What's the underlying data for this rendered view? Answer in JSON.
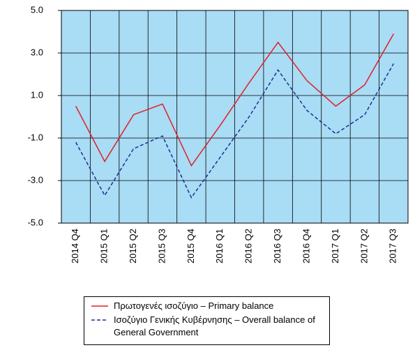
{
  "chart_data": {
    "type": "line",
    "categories": [
      "2014 Q4",
      "2015 Q1",
      "2015 Q2",
      "2015 Q3",
      "2015 Q4",
      "2016 Q1",
      "2016 Q2",
      "2016 Q3",
      "2016 Q4",
      "2017 Q1",
      "2017 Q2",
      "2017 Q3"
    ],
    "series": [
      {
        "name": "Πρωτογενές ισοζύγιο – Primary balance",
        "color": "#e31e24",
        "dash": false,
        "values": [
          0.5,
          -2.1,
          0.1,
          0.6,
          -2.3,
          -0.4,
          1.6,
          3.5,
          1.7,
          0.5,
          1.5,
          3.9
        ]
      },
      {
        "name": "Ισοζύγιο Γενικής Κυβέρνησης – Overall balance of General Government",
        "color": "#1f2f8f",
        "dash": true,
        "values": [
          -1.2,
          -3.7,
          -1.5,
          -0.9,
          -3.8,
          -1.9,
          0.0,
          2.2,
          0.3,
          -0.8,
          0.1,
          2.5
        ]
      }
    ],
    "ylim": [
      -5,
      5
    ],
    "yticks": [
      {
        "value": -5,
        "label": "-5.0"
      },
      {
        "value": -3,
        "label": "-3.0"
      },
      {
        "value": -1,
        "label": "-1.0"
      },
      {
        "value": 1,
        "label": "1.0"
      },
      {
        "value": 3,
        "label": "3.0"
      },
      {
        "value": 5,
        "label": "5.0"
      }
    ],
    "grid": true,
    "plot_background": "#a9dcf5"
  }
}
